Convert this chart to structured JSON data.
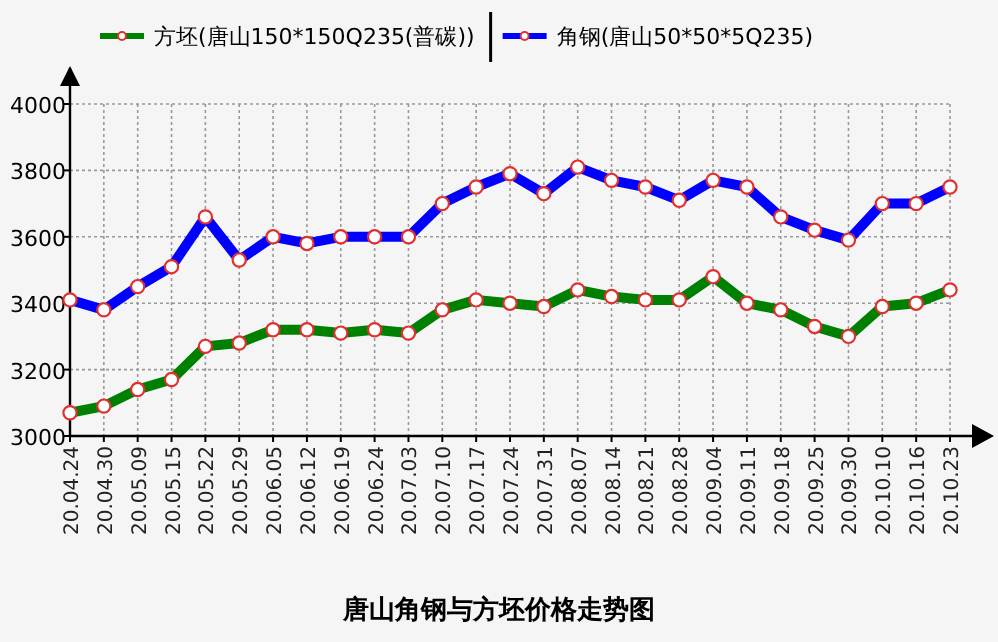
{
  "chart_data": {
    "type": "line",
    "title": "唐山角钢与方坯价格走势图",
    "categories": [
      "20.04.24",
      "20.04.30",
      "20.05.09",
      "20.05.15",
      "20.05.22",
      "20.05.29",
      "20.06.05",
      "20.06.12",
      "20.06.19",
      "20.06.24",
      "20.07.03",
      "20.07.10",
      "20.07.17",
      "20.07.24",
      "20.07.31",
      "20.08.07",
      "20.08.14",
      "20.08.21",
      "20.08.28",
      "20.09.04",
      "20.09.11",
      "20.09.18",
      "20.09.25",
      "20.09.30",
      "20.10.10",
      "20.10.16",
      "20.10.23"
    ],
    "series": [
      {
        "name": "方坯(唐山150*150Q235(普碳))",
        "color": "#008000",
        "values": [
          3070,
          3090,
          3140,
          3170,
          3270,
          3280,
          3320,
          3320,
          3310,
          3320,
          3310,
          3380,
          3410,
          3400,
          3390,
          3440,
          3420,
          3410,
          3410,
          3480,
          3400,
          3380,
          3330,
          3300,
          3390,
          3400,
          3440
        ]
      },
      {
        "name": "角钢(唐山50*50*5Q235)",
        "color": "#0000ff",
        "values": [
          3410,
          3380,
          3450,
          3510,
          3660,
          3530,
          3600,
          3580,
          3600,
          3600,
          3600,
          3700,
          3750,
          3790,
          3730,
          3810,
          3770,
          3750,
          3710,
          3770,
          3750,
          3660,
          3620,
          3590,
          3700,
          3700,
          3750
        ]
      }
    ],
    "ylim": [
      3000,
      4000
    ],
    "yticks": [
      3000,
      3200,
      3400,
      3600,
      3800,
      4000
    ],
    "grid": true,
    "legend": "top",
    "marker": "circle"
  }
}
